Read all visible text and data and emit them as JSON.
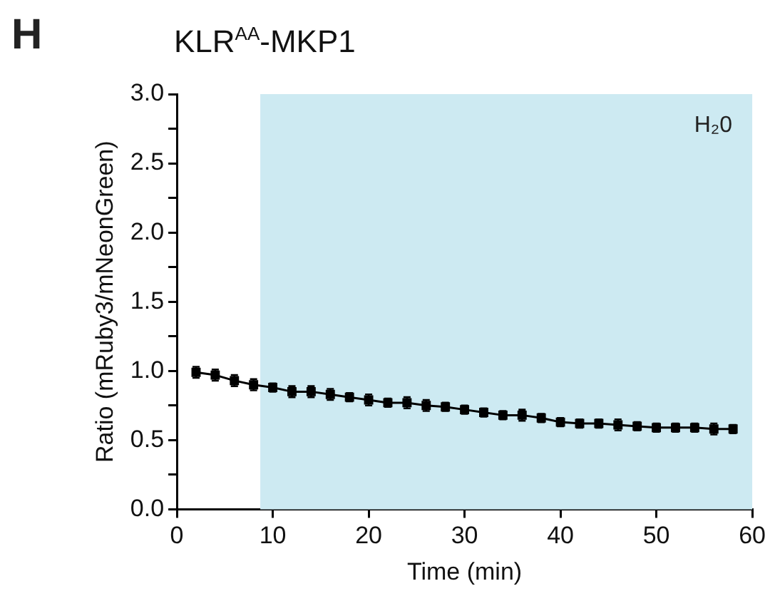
{
  "chart_data": {
    "type": "line",
    "title": "KLR$^{AA}$-MKP1",
    "xlabel": "Time (min)",
    "ylabel": "Ratio (mRuby3/mNeonGreen)",
    "annotations": [
      "H"
    ],
    "x": [
      2,
      4,
      6,
      8,
      10,
      12,
      14,
      16,
      18,
      20,
      22,
      24,
      26,
      28,
      30,
      32,
      34,
      36,
      38,
      40,
      42,
      44,
      46,
      48,
      50,
      52,
      54,
      56,
      58
    ],
    "series": [
      {
        "color": "#000000",
        "values": [
          0.99,
          0.97,
          0.93,
          0.9,
          0.88,
          0.85,
          0.85,
          0.83,
          0.81,
          0.79,
          0.77,
          0.77,
          0.75,
          0.74,
          0.72,
          0.7,
          0.68,
          0.68,
          0.66,
          0.63,
          0.62,
          0.62,
          0.61,
          0.6,
          0.59,
          0.59,
          0.59,
          0.58,
          0.58
        ],
        "errors": [
          0.04,
          0.04,
          0.04,
          0.04,
          0.03,
          0.04,
          0.04,
          0.04,
          0.03,
          0.04,
          0.03,
          0.04,
          0.04,
          0.03,
          0.03,
          0.03,
          0.03,
          0.04,
          0.03,
          0.03,
          0.03,
          0.03,
          0.04,
          0.03,
          0.03,
          0.03,
          0.03,
          0.04,
          0.03
        ]
      }
    ],
    "xlim": [
      0,
      60
    ],
    "xticks": [
      0,
      10,
      20,
      30,
      40,
      50,
      60
    ],
    "ylim": [
      0,
      3
    ],
    "yticks": [
      {
        "value": 0,
        "label": "0.0"
      },
      {
        "value": 0.25,
        "label": null
      },
      0.5,
      {
        "value": 0.75,
        "label": null
      },
      {
        "value": 1,
        "label": "1.0"
      },
      {
        "value": 1.25,
        "label": null
      },
      1.5,
      {
        "value": 1.75,
        "label": null
      },
      {
        "value": 2,
        "label": "2.0"
      },
      {
        "value": 2.25,
        "label": null
      },
      2.5,
      {
        "value": 2.75,
        "label": null
      },
      {
        "value": 3,
        "label": "3.0"
      }
    ],
    "bands": [
      {
        "axis": "x",
        "from": 8.7,
        "to": 60,
        "color": "#cdeaf2",
        "label": "H₂0"
      }
    ],
    "grid": false,
    "legend": false,
    "marker": "square",
    "line_style": "solid"
  }
}
